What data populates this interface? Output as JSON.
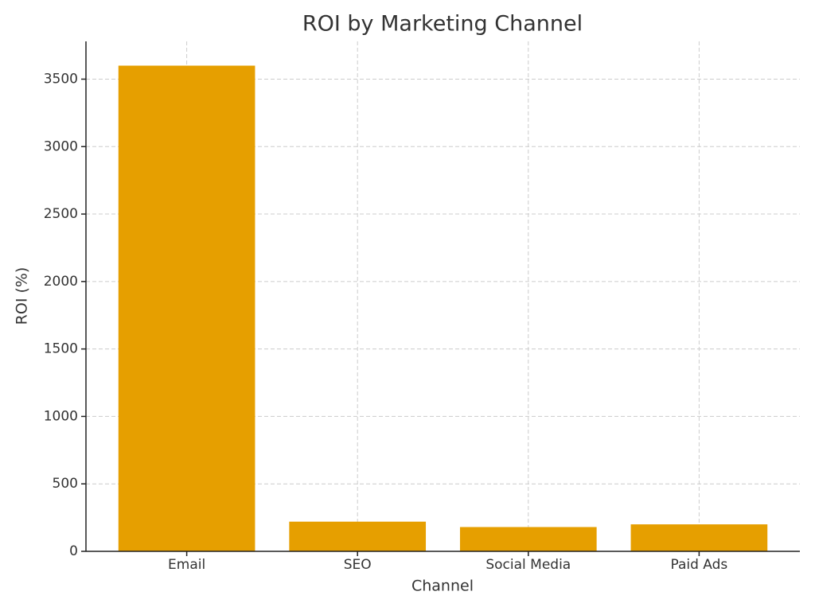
{
  "chart_data": {
    "type": "bar",
    "title": "ROI by Marketing Channel",
    "x_label": "Channel",
    "y_label": "ROI (%)",
    "categories": [
      "Email",
      "SEO",
      "Social Media",
      "Paid Ads"
    ],
    "values": [
      3600,
      220,
      180,
      200
    ],
    "color": "#E69F00",
    "ylim": [
      0,
      3780
    ],
    "yticks": [
      0,
      500,
      1000,
      1500,
      2000,
      2500,
      3000,
      3500
    ],
    "grid": true
  }
}
